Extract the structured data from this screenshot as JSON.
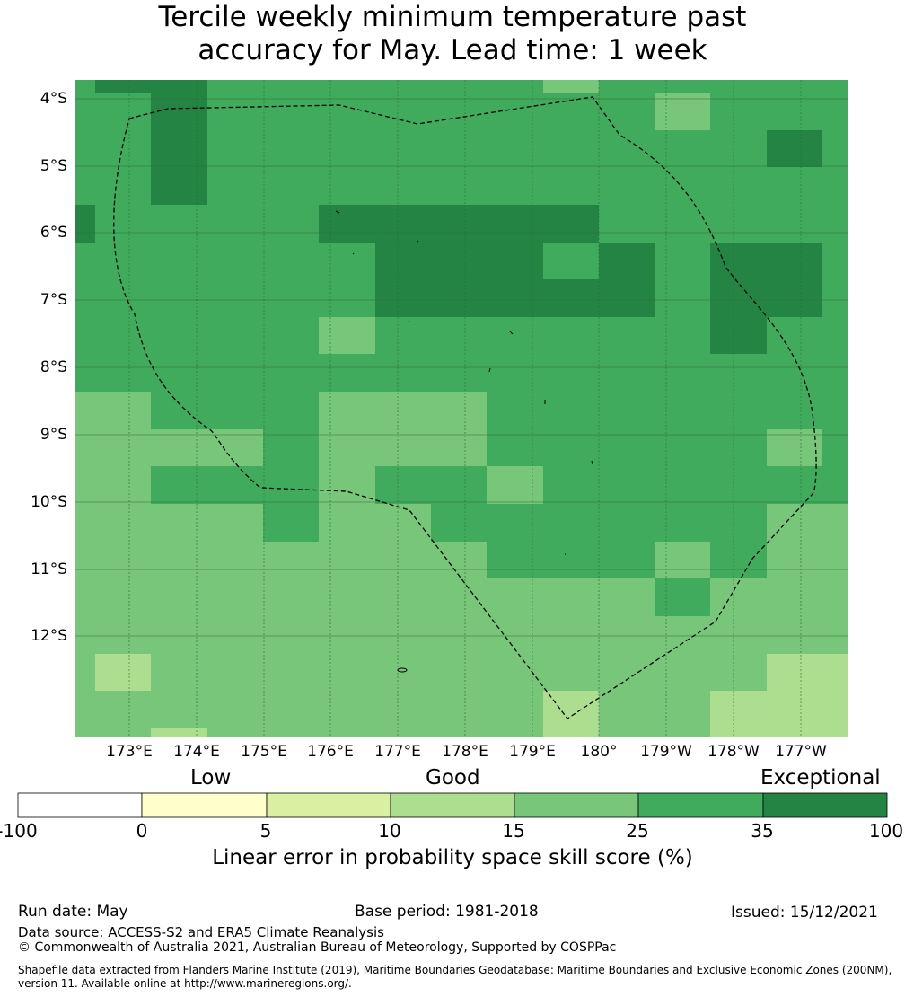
{
  "title": {
    "line1": "Tercile weekly minimum temperature past",
    "line2": "accuracy for May. Lead time: 1 week"
  },
  "map": {
    "lat_labels": [
      "4°S",
      "5°S",
      "6°S",
      "7°S",
      "8°S",
      "9°S",
      "10°S",
      "11°S",
      "12°S"
    ],
    "lon_labels": [
      "173°E",
      "174°E",
      "175°E",
      "176°E",
      "177°E",
      "178°E",
      "179°E",
      "180°",
      "179°W",
      "178°W",
      "177°W"
    ],
    "palette": [
      "#ffffff",
      "#ffffcc",
      "#d9f0a3",
      "#addd8e",
      "#78c679",
      "#41ab5d",
      "#238443"
    ],
    "grid_color": "#2f6b35",
    "boundary_color": "#000000",
    "categories": [
      "Low",
      "Good",
      "Exceptional"
    ]
  },
  "colorbar": {
    "ticks": [
      "-100",
      "0",
      "5",
      "10",
      "15",
      "25",
      "35",
      "100"
    ],
    "label": "Linear error in probability space skill score (%)"
  },
  "footer": {
    "run_date": "Run date: May",
    "base_period": "Base period: 1981-2018",
    "issued": "Issued: 15/12/2021",
    "data_source": "Data source: ACCESS-S2 and ERA5 Climate Reanalysis",
    "copyright": "© Commonwealth of Australia 2021, Australian Bureau of Meteorology, Supported by COSPPac",
    "shapefile_line1": "Shapefile data extracted from Flanders Marine Institute (2019), Maritime Boundaries Geodatabase: Maritime Boundaries and Exclusive Economic Zones (200NM),",
    "shapefile_line2": "version 11. Available online at http://www.marineregions.org/."
  }
}
